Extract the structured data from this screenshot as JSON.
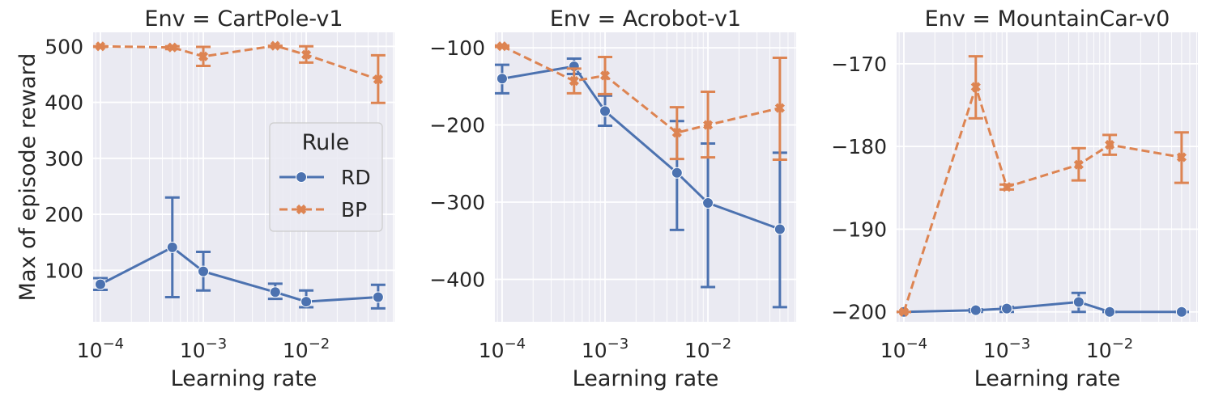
{
  "chart_data": [
    {
      "type": "line",
      "title": "Env = CartPole-v1",
      "xlabel": "Learning rate",
      "ylabel": "Max of episode reward",
      "xscale": "log",
      "x_ticks": [
        "10^-4",
        "10^-3",
        "10^-2"
      ],
      "ylim": [
        8,
        525
      ],
      "y_ticks": [
        100,
        200,
        300,
        400,
        500
      ],
      "grid": true,
      "legend": {
        "title": "Rule",
        "placement": "center-right"
      },
      "x": [
        0.0001,
        0.0005,
        0.001,
        0.005,
        0.01,
        0.05
      ],
      "series": [
        {
          "name": "RD",
          "color": "#4c72b0",
          "style": "solid",
          "marker": "circle",
          "values": [
            75,
            141,
            98,
            61,
            44,
            52
          ],
          "err_low": [
            65,
            52,
            64,
            49,
            34,
            32
          ],
          "err_high": [
            86,
            230,
            133,
            76,
            64,
            74
          ]
        },
        {
          "name": "BP",
          "color": "#dd8452",
          "style": "dashed",
          "marker": "x",
          "values": [
            500,
            498,
            482,
            501,
            485,
            441
          ],
          "err_low": [
            499,
            495,
            465,
            499,
            471,
            399
          ],
          "err_high": [
            500,
            500,
            499,
            501,
            500,
            484
          ]
        }
      ]
    },
    {
      "type": "line",
      "title": "Env = Acrobot-v1",
      "xlabel": "Learning rate",
      "ylabel": "",
      "xscale": "log",
      "x_ticks": [
        "10^-4",
        "10^-3",
        "10^-2"
      ],
      "ylim": [
        -455,
        -80
      ],
      "y_ticks": [
        -400,
        -300,
        -200,
        -100
      ],
      "grid": true,
      "x": [
        0.0001,
        0.0005,
        0.001,
        0.005,
        0.01,
        0.05
      ],
      "series": [
        {
          "name": "RD",
          "color": "#4c72b0",
          "style": "solid",
          "marker": "circle",
          "values": [
            -140,
            -124,
            -182,
            -262,
            -301,
            -335
          ],
          "err_low": [
            -159,
            -134,
            -201,
            -336,
            -410,
            -436
          ],
          "err_high": [
            -122,
            -114,
            -162,
            -195,
            -224,
            -236
          ]
        },
        {
          "name": "BP",
          "color": "#dd8452",
          "style": "dashed",
          "marker": "x",
          "values": [
            -98,
            -143,
            -136,
            -210,
            -200,
            -178
          ],
          "err_low": [
            -99,
            -159,
            -160,
            -244,
            -242,
            -245
          ],
          "err_high": [
            -97,
            -127,
            -112,
            -177,
            -157,
            -113
          ]
        }
      ]
    },
    {
      "type": "line",
      "title": "Env = MountainCar-v0",
      "xlabel": "Learning rate",
      "ylabel": "",
      "xscale": "log",
      "x_ticks": [
        "10^-4",
        "10^-3",
        "10^-2"
      ],
      "ylim": [
        -201.2,
        -166.2
      ],
      "y_ticks": [
        -200,
        -190,
        -180,
        -170
      ],
      "grid": true,
      "x": [
        0.0001,
        0.0005,
        0.001,
        0.005,
        0.01,
        0.05
      ],
      "series": [
        {
          "name": "RD",
          "color": "#4c72b0",
          "style": "solid",
          "marker": "circle",
          "values": [
            -200,
            -199.8,
            -199.6,
            -198.8,
            -200,
            -200
          ],
          "err_low": [
            -200,
            -200,
            -200,
            -200,
            -200,
            -200
          ],
          "err_high": [
            -200,
            -199.7,
            -199.4,
            -197.7,
            -200,
            -200
          ]
        },
        {
          "name": "BP",
          "color": "#dd8452",
          "style": "dashed",
          "marker": "x",
          "values": [
            -200,
            -172.8,
            -184.9,
            -182.2,
            -179.8,
            -181.3
          ],
          "err_low": [
            -200,
            -176.6,
            -185.2,
            -184.1,
            -181.0,
            -184.4
          ],
          "err_high": [
            -200,
            -169.1,
            -184.6,
            -180.2,
            -178.6,
            -178.3
          ]
        }
      ]
    }
  ]
}
